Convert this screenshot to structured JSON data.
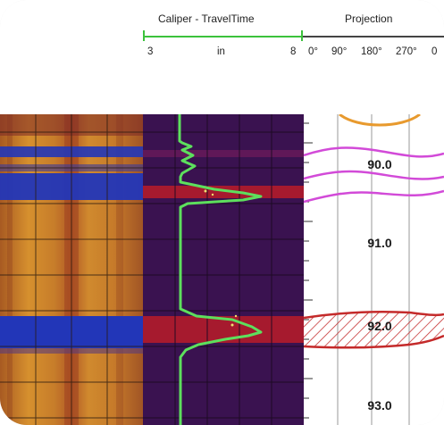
{
  "header": {
    "caliper_title": "Caliper - TravelTime",
    "caliper_min": "3",
    "caliper_unit": "in",
    "caliper_max": "8",
    "projection_title": "Projection",
    "projection_ticks": [
      "0°",
      "90°",
      "180°",
      "270°",
      "0"
    ]
  },
  "depth_track": {
    "labels": [
      "90.0",
      "91.0",
      "92.0",
      "93.0"
    ]
  },
  "colors": {
    "caliper_curve": "#5de05d",
    "travel_bg": "#3a1250",
    "amplitude_bg": "#c07a28",
    "anomaly_blue": "#2236b8",
    "sinusoid_magenta": "#d24ad8",
    "sinusoid_red": "#c42a2a",
    "sinusoid_orange": "#e89a2e"
  }
}
